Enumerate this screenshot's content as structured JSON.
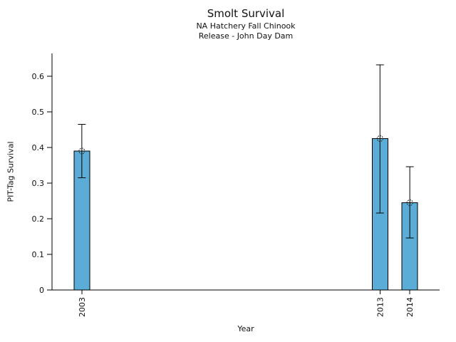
{
  "chart_data": {
    "type": "bar",
    "title": "Smolt Survival",
    "subtitle1": "NA Hatchery Fall Chinook",
    "subtitle2": "Release - John Day Dam",
    "xlabel": "Year",
    "ylabel": "PIT-Tag Survival",
    "categories": [
      "2003",
      "2013",
      "2014"
    ],
    "x": [
      2003,
      2013,
      2014
    ],
    "values": [
      0.39,
      0.425,
      0.245
    ],
    "error_low": [
      0.315,
      0.216,
      0.146
    ],
    "error_high": [
      0.465,
      0.632,
      0.346
    ],
    "xlim": [
      2002,
      2015
    ],
    "ylim": [
      0,
      0.664
    ],
    "yticks": [
      0,
      0.1,
      0.2,
      0.3,
      0.4,
      0.5,
      0.6
    ],
    "ytick_labels": [
      "0",
      "0.1",
      "0.2",
      "0.3",
      "0.4",
      "0.5",
      "0.6"
    ],
    "bar_color": "#5BACD6",
    "bar_edge_color": "#000000",
    "marker": "open-circle",
    "grid": false,
    "legend": null
  }
}
